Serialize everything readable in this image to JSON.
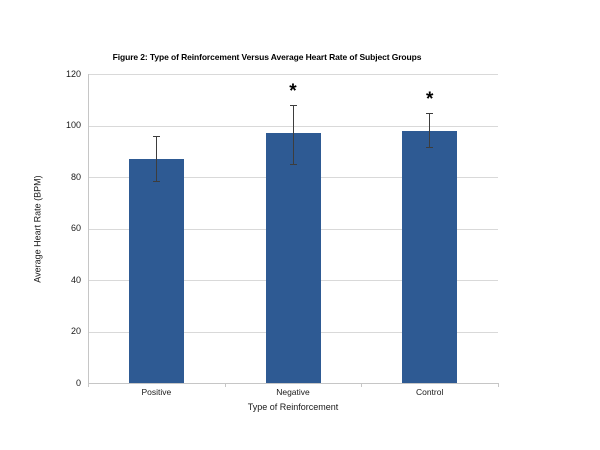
{
  "chart_data": {
    "type": "bar",
    "title": "Figure 2: Type of Reinforcement Versus Average Heart Rate of Subject Groups",
    "xlabel": "Type of Reinforcement",
    "ylabel": "Average Heart Rate (BPM)",
    "categories": [
      "Positive",
      "Negative",
      "Control"
    ],
    "values": [
      87,
      97,
      98
    ],
    "error_low": [
      78.5,
      85,
      91.5
    ],
    "error_high": [
      96,
      108,
      105
    ],
    "significance": [
      "",
      "*",
      "*"
    ],
    "ylim": [
      0,
      120
    ],
    "yticks": [
      0,
      20,
      40,
      60,
      80,
      100,
      120
    ],
    "grid": true,
    "legend": "none",
    "colors": {
      "bar": "#2E5A93",
      "gridline": "#D9D9D9",
      "axis": "#C6C6C6",
      "error_bar": "#3D3D3D",
      "text": "#1A1A1A"
    }
  }
}
